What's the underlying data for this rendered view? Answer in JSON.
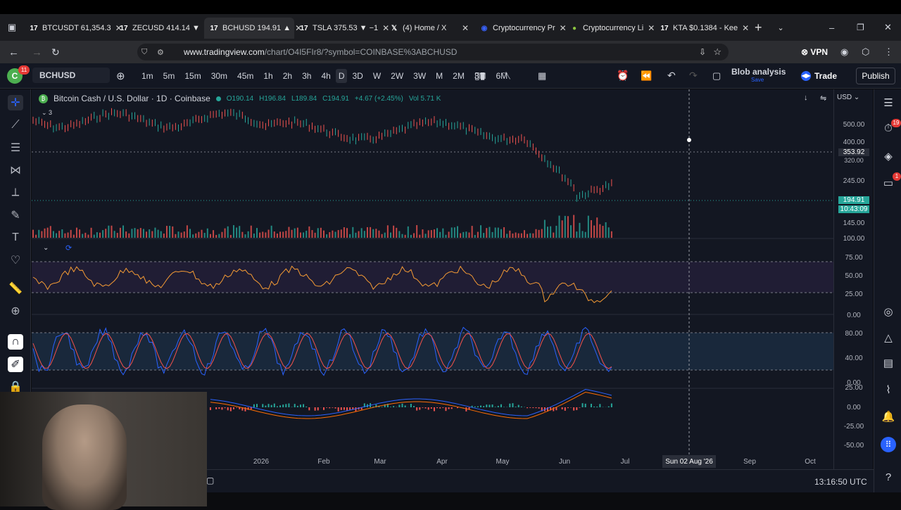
{
  "tabs": [
    {
      "label": "BTCUSDT 61,354.3 ",
      "icon": "tradingview-icon"
    },
    {
      "label": "ZECUSD 414.14 ▼",
      "icon": "tradingview-icon"
    },
    {
      "label": "BCHUSD 194.91 ▲",
      "icon": "tradingview-icon"
    },
    {
      "label": "TSLA 375.53 ▼ −1",
      "icon": "tradingview-icon"
    },
    {
      "label": "(4) Home / X",
      "icon": "x-icon"
    },
    {
      "label": "Cryptocurrency Pr",
      "icon": "coinmarketcap-icon"
    },
    {
      "label": "Cryptocurrency Li",
      "icon": "coingecko-icon"
    },
    {
      "label": "KTA $0.1384 - Kee",
      "icon": "tradingview-icon"
    }
  ],
  "url": {
    "host": "www.tradingview.com",
    "path": "/chart/O4I5FIr8/?symbol=COINBASE%3ABCHUSD"
  },
  "vpn": "VPN",
  "toolbar": {
    "symbol": "BCHUSD",
    "timeframes": [
      "1m",
      "5m",
      "15m",
      "30m",
      "45m",
      "1h",
      "2h",
      "3h",
      "4h",
      "D",
      "3D",
      "W",
      "2W",
      "3W",
      "M",
      "2M",
      "3M",
      "6M"
    ],
    "active_timeframe": "D",
    "layout": "Blob analysis",
    "layout_sub": "Save",
    "trade": "Trade",
    "publish": "Publish",
    "badge": "11"
  },
  "legend": {
    "title": "Bitcoin Cash / U.S. Dollar · 1D · Coinbase",
    "open": "O190.14",
    "high": "H196.84",
    "low": "L189.84",
    "close": "C194.91",
    "change": "+4.67 (+2.45%)",
    "vol": "Vol 5.71 K",
    "count": "3"
  },
  "currency": "USD",
  "price_axis": [
    "500.00",
    "400.00",
    "353.92",
    "320.00",
    "245.00",
    "194.91",
    "10:43:09",
    "145.00",
    "100.00"
  ],
  "rsi_axis": [
    "75.00",
    "50.00",
    "25.00",
    "0.00"
  ],
  "stoch_axis": [
    "80.00",
    "40.00",
    "0.00"
  ],
  "macd_axis": [
    "25.00",
    "0.00",
    "-25.00",
    "-50.00"
  ],
  "time_axis": [
    "2026",
    "Feb",
    "Mar",
    "Apr",
    "May",
    "Jun",
    "Jul",
    "Sep",
    "Oct"
  ],
  "crosshair_date": "Sun 02 Aug '26",
  "clock": "13:16:50 UTC",
  "right_badges": [
    "19",
    "1"
  ],
  "colors": {
    "up": "#26a69a",
    "down": "#ef5350",
    "rsi": "#f59b34",
    "stoch_k": "#2962ff",
    "stoch_d": "#f5514b",
    "bg": "#131722",
    "price_tag": "#26a69a"
  }
}
